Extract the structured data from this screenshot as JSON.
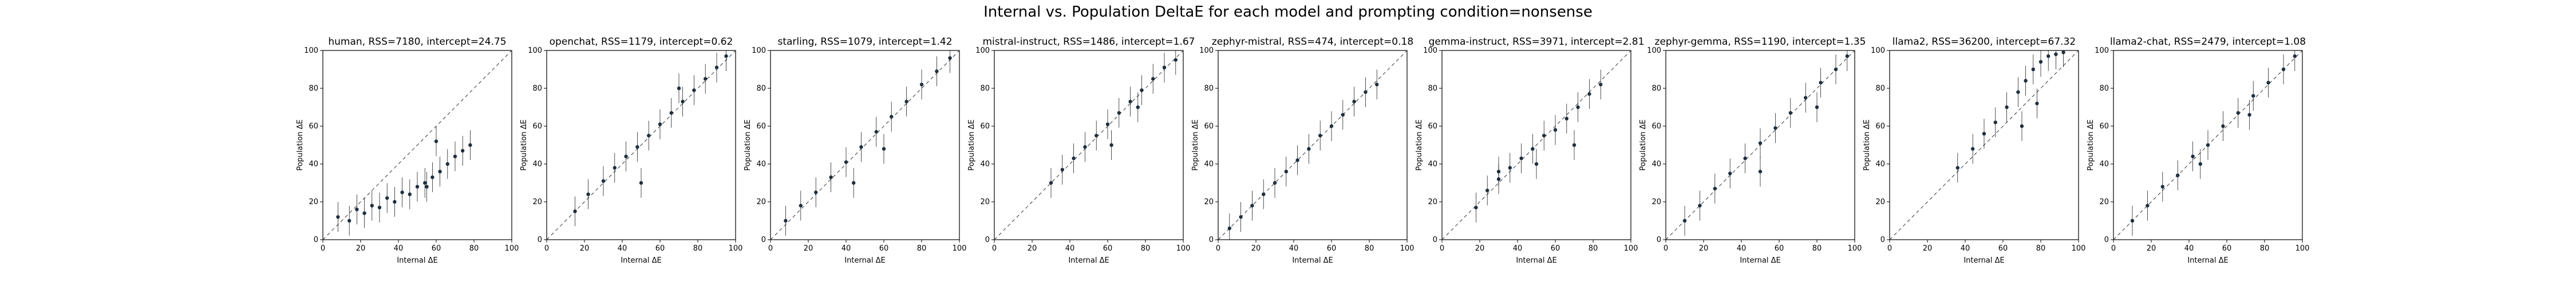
{
  "figure": {
    "title": "Internal vs. Population DeltaE for each model and prompting condition=nonsense"
  },
  "chart_data": [
    {
      "type": "scatter",
      "title": "human, RSS=7180, intercept=24.75",
      "xlabel": "Internal ΔE",
      "ylabel": "Population ΔE",
      "xlim": [
        0,
        100
      ],
      "ylim": [
        0,
        100
      ],
      "xticks": [
        "0",
        "20",
        "40",
        "60",
        "80",
        "100"
      ],
      "yticks": [
        "0",
        "20",
        "40",
        "60",
        "80",
        "100"
      ],
      "grid": false,
      "reference_line": "y = x (dashed)",
      "points": [
        {
          "x": 8,
          "y": 12
        },
        {
          "x": 14,
          "y": 10
        },
        {
          "x": 18,
          "y": 16
        },
        {
          "x": 22,
          "y": 14
        },
        {
          "x": 26,
          "y": 18
        },
        {
          "x": 30,
          "y": 17
        },
        {
          "x": 34,
          "y": 22
        },
        {
          "x": 38,
          "y": 20
        },
        {
          "x": 42,
          "y": 25
        },
        {
          "x": 46,
          "y": 24
        },
        {
          "x": 50,
          "y": 28
        },
        {
          "x": 54,
          "y": 30
        },
        {
          "x": 58,
          "y": 33
        },
        {
          "x": 62,
          "y": 36
        },
        {
          "x": 66,
          "y": 40
        },
        {
          "x": 70,
          "y": 44
        },
        {
          "x": 74,
          "y": 47
        },
        {
          "x": 78,
          "y": 50
        },
        {
          "x": 60,
          "y": 52
        },
        {
          "x": 55,
          "y": 28
        }
      ]
    },
    {
      "type": "scatter",
      "title": "openchat, RSS=1179, intercept=0.62",
      "xlabel": "Internal ΔE",
      "ylabel": "Population ΔE",
      "xlim": [
        0,
        100
      ],
      "ylim": [
        0,
        100
      ],
      "xticks": [
        "0",
        "20",
        "40",
        "60",
        "80",
        "100"
      ],
      "yticks": [
        "0",
        "20",
        "40",
        "60",
        "80",
        "100"
      ],
      "grid": false,
      "reference_line": "y = x (dashed)",
      "points": [
        {
          "x": 15,
          "y": 15
        },
        {
          "x": 22,
          "y": 24
        },
        {
          "x": 30,
          "y": 31
        },
        {
          "x": 36,
          "y": 38
        },
        {
          "x": 42,
          "y": 44
        },
        {
          "x": 48,
          "y": 49
        },
        {
          "x": 54,
          "y": 55
        },
        {
          "x": 60,
          "y": 61
        },
        {
          "x": 66,
          "y": 67
        },
        {
          "x": 72,
          "y": 73
        },
        {
          "x": 78,
          "y": 79
        },
        {
          "x": 84,
          "y": 85
        },
        {
          "x": 90,
          "y": 91
        },
        {
          "x": 95,
          "y": 97
        },
        {
          "x": 50,
          "y": 30
        },
        {
          "x": 70,
          "y": 80
        }
      ]
    },
    {
      "type": "scatter",
      "title": "starling, RSS=1079, intercept=1.42",
      "xlabel": "Internal ΔE",
      "ylabel": "Population ΔE",
      "xlim": [
        0,
        100
      ],
      "ylim": [
        0,
        100
      ],
      "xticks": [
        "0",
        "20",
        "40",
        "60",
        "80",
        "100"
      ],
      "yticks": [
        "0",
        "20",
        "40",
        "60",
        "80",
        "100"
      ],
      "grid": false,
      "reference_line": "y = x (dashed)",
      "points": [
        {
          "x": 8,
          "y": 10
        },
        {
          "x": 16,
          "y": 18
        },
        {
          "x": 24,
          "y": 25
        },
        {
          "x": 32,
          "y": 33
        },
        {
          "x": 40,
          "y": 41
        },
        {
          "x": 48,
          "y": 49
        },
        {
          "x": 56,
          "y": 57
        },
        {
          "x": 64,
          "y": 65
        },
        {
          "x": 72,
          "y": 73
        },
        {
          "x": 80,
          "y": 82
        },
        {
          "x": 88,
          "y": 89
        },
        {
          "x": 95,
          "y": 96
        },
        {
          "x": 44,
          "y": 30
        },
        {
          "x": 60,
          "y": 48
        }
      ]
    },
    {
      "type": "scatter",
      "title": "mistral-instruct, RSS=1486, intercept=1.67",
      "xlabel": "Internal ΔE",
      "ylabel": "Population ΔE",
      "xlim": [
        0,
        100
      ],
      "ylim": [
        0,
        100
      ],
      "xticks": [
        "0",
        "20",
        "40",
        "60",
        "80",
        "100"
      ],
      "yticks": [
        "0",
        "20",
        "40",
        "60",
        "80",
        "100"
      ],
      "grid": false,
      "reference_line": "y = x (dashed)",
      "points": [
        {
          "x": 30,
          "y": 30
        },
        {
          "x": 36,
          "y": 37
        },
        {
          "x": 42,
          "y": 43
        },
        {
          "x": 48,
          "y": 49
        },
        {
          "x": 54,
          "y": 55
        },
        {
          "x": 60,
          "y": 61
        },
        {
          "x": 66,
          "y": 67
        },
        {
          "x": 72,
          "y": 73
        },
        {
          "x": 78,
          "y": 79
        },
        {
          "x": 84,
          "y": 85
        },
        {
          "x": 90,
          "y": 91
        },
        {
          "x": 96,
          "y": 95
        },
        {
          "x": 62,
          "y": 50
        },
        {
          "x": 76,
          "y": 70
        }
      ]
    },
    {
      "type": "scatter",
      "title": "zephyr-mistral, RSS=474, intercept=0.18",
      "xlabel": "Internal ΔE",
      "ylabel": "Population ΔE",
      "xlim": [
        0,
        100
      ],
      "ylim": [
        0,
        100
      ],
      "xticks": [
        "0",
        "20",
        "40",
        "60",
        "80",
        "100"
      ],
      "yticks": [
        "0",
        "20",
        "40",
        "60",
        "80",
        "100"
      ],
      "grid": false,
      "reference_line": "y = x (dashed)",
      "points": [
        {
          "x": 6,
          "y": 6
        },
        {
          "x": 12,
          "y": 12
        },
        {
          "x": 18,
          "y": 18
        },
        {
          "x": 24,
          "y": 24
        },
        {
          "x": 30,
          "y": 30
        },
        {
          "x": 36,
          "y": 36
        },
        {
          "x": 42,
          "y": 42
        },
        {
          "x": 48,
          "y": 48
        },
        {
          "x": 54,
          "y": 55
        },
        {
          "x": 60,
          "y": 60
        },
        {
          "x": 66,
          "y": 66
        },
        {
          "x": 72,
          "y": 73
        },
        {
          "x": 78,
          "y": 78
        },
        {
          "x": 84,
          "y": 82
        }
      ]
    },
    {
      "type": "scatter",
      "title": "gemma-instruct, RSS=3971, intercept=2.81",
      "xlabel": "Internal ΔE",
      "ylabel": "Population ΔE",
      "xlim": [
        0,
        100
      ],
      "ylim": [
        0,
        100
      ],
      "xticks": [
        "0",
        "20",
        "40",
        "60",
        "80",
        "100"
      ],
      "yticks": [
        "0",
        "20",
        "40",
        "60",
        "80",
        "100"
      ],
      "grid": false,
      "reference_line": "y = x (dashed)",
      "points": [
        {
          "x": 18,
          "y": 17
        },
        {
          "x": 24,
          "y": 26
        },
        {
          "x": 30,
          "y": 32
        },
        {
          "x": 36,
          "y": 38
        },
        {
          "x": 42,
          "y": 43
        },
        {
          "x": 48,
          "y": 48
        },
        {
          "x": 54,
          "y": 55
        },
        {
          "x": 60,
          "y": 58
        },
        {
          "x": 66,
          "y": 64
        },
        {
          "x": 72,
          "y": 70
        },
        {
          "x": 78,
          "y": 77
        },
        {
          "x": 84,
          "y": 82
        },
        {
          "x": 30,
          "y": 36
        },
        {
          "x": 50,
          "y": 40
        },
        {
          "x": 70,
          "y": 50
        }
      ]
    },
    {
      "type": "scatter",
      "title": "zephyr-gemma, RSS=1190, intercept=1.35",
      "xlabel": "Internal ΔE",
      "ylabel": "Population ΔE",
      "xlim": [
        0,
        100
      ],
      "ylim": [
        0,
        100
      ],
      "xticks": [
        "0",
        "20",
        "40",
        "60",
        "80",
        "100"
      ],
      "yticks": [
        "0",
        "20",
        "40",
        "60",
        "80",
        "100"
      ],
      "grid": false,
      "reference_line": "y = x (dashed)",
      "points": [
        {
          "x": 10,
          "y": 10
        },
        {
          "x": 18,
          "y": 18
        },
        {
          "x": 26,
          "y": 27
        },
        {
          "x": 34,
          "y": 35
        },
        {
          "x": 42,
          "y": 43
        },
        {
          "x": 50,
          "y": 51
        },
        {
          "x": 58,
          "y": 59
        },
        {
          "x": 66,
          "y": 67
        },
        {
          "x": 74,
          "y": 75
        },
        {
          "x": 82,
          "y": 83
        },
        {
          "x": 90,
          "y": 90
        },
        {
          "x": 96,
          "y": 97
        },
        {
          "x": 50,
          "y": 36
        },
        {
          "x": 80,
          "y": 70
        }
      ]
    },
    {
      "type": "scatter",
      "title": "llama2, RSS=36200, intercept=67.32",
      "xlabel": "Internal ΔE",
      "ylabel": "Population ΔE",
      "xlim": [
        0,
        100
      ],
      "ylim": [
        0,
        100
      ],
      "xticks": [
        "0",
        "20",
        "40",
        "60",
        "80",
        "100"
      ],
      "yticks": [
        "0",
        "20",
        "40",
        "60",
        "80",
        "100"
      ],
      "grid": false,
      "reference_line": "y = x (dashed)",
      "points": [
        {
          "x": 36,
          "y": 38
        },
        {
          "x": 44,
          "y": 48
        },
        {
          "x": 50,
          "y": 56
        },
        {
          "x": 56,
          "y": 62
        },
        {
          "x": 62,
          "y": 70
        },
        {
          "x": 68,
          "y": 78
        },
        {
          "x": 72,
          "y": 84
        },
        {
          "x": 76,
          "y": 90
        },
        {
          "x": 80,
          "y": 94
        },
        {
          "x": 84,
          "y": 97
        },
        {
          "x": 88,
          "y": 98
        },
        {
          "x": 92,
          "y": 99
        },
        {
          "x": 70,
          "y": 60
        },
        {
          "x": 78,
          "y": 72
        }
      ]
    },
    {
      "type": "scatter",
      "title": "llama2-chat, RSS=2479, intercept=1.08",
      "xlabel": "Internal ΔE",
      "ylabel": "Population ΔE",
      "xlim": [
        0,
        100
      ],
      "ylim": [
        0,
        100
      ],
      "xticks": [
        "0",
        "20",
        "40",
        "60",
        "80",
        "100"
      ],
      "yticks": [
        "0",
        "20",
        "40",
        "60",
        "80",
        "100"
      ],
      "grid": false,
      "reference_line": "y = x (dashed)",
      "points": [
        {
          "x": 10,
          "y": 10
        },
        {
          "x": 18,
          "y": 18
        },
        {
          "x": 26,
          "y": 28
        },
        {
          "x": 34,
          "y": 34
        },
        {
          "x": 42,
          "y": 44
        },
        {
          "x": 50,
          "y": 50
        },
        {
          "x": 58,
          "y": 60
        },
        {
          "x": 66,
          "y": 67
        },
        {
          "x": 74,
          "y": 76
        },
        {
          "x": 82,
          "y": 83
        },
        {
          "x": 90,
          "y": 90
        },
        {
          "x": 96,
          "y": 97
        },
        {
          "x": 46,
          "y": 40
        },
        {
          "x": 72,
          "y": 66
        }
      ]
    }
  ]
}
